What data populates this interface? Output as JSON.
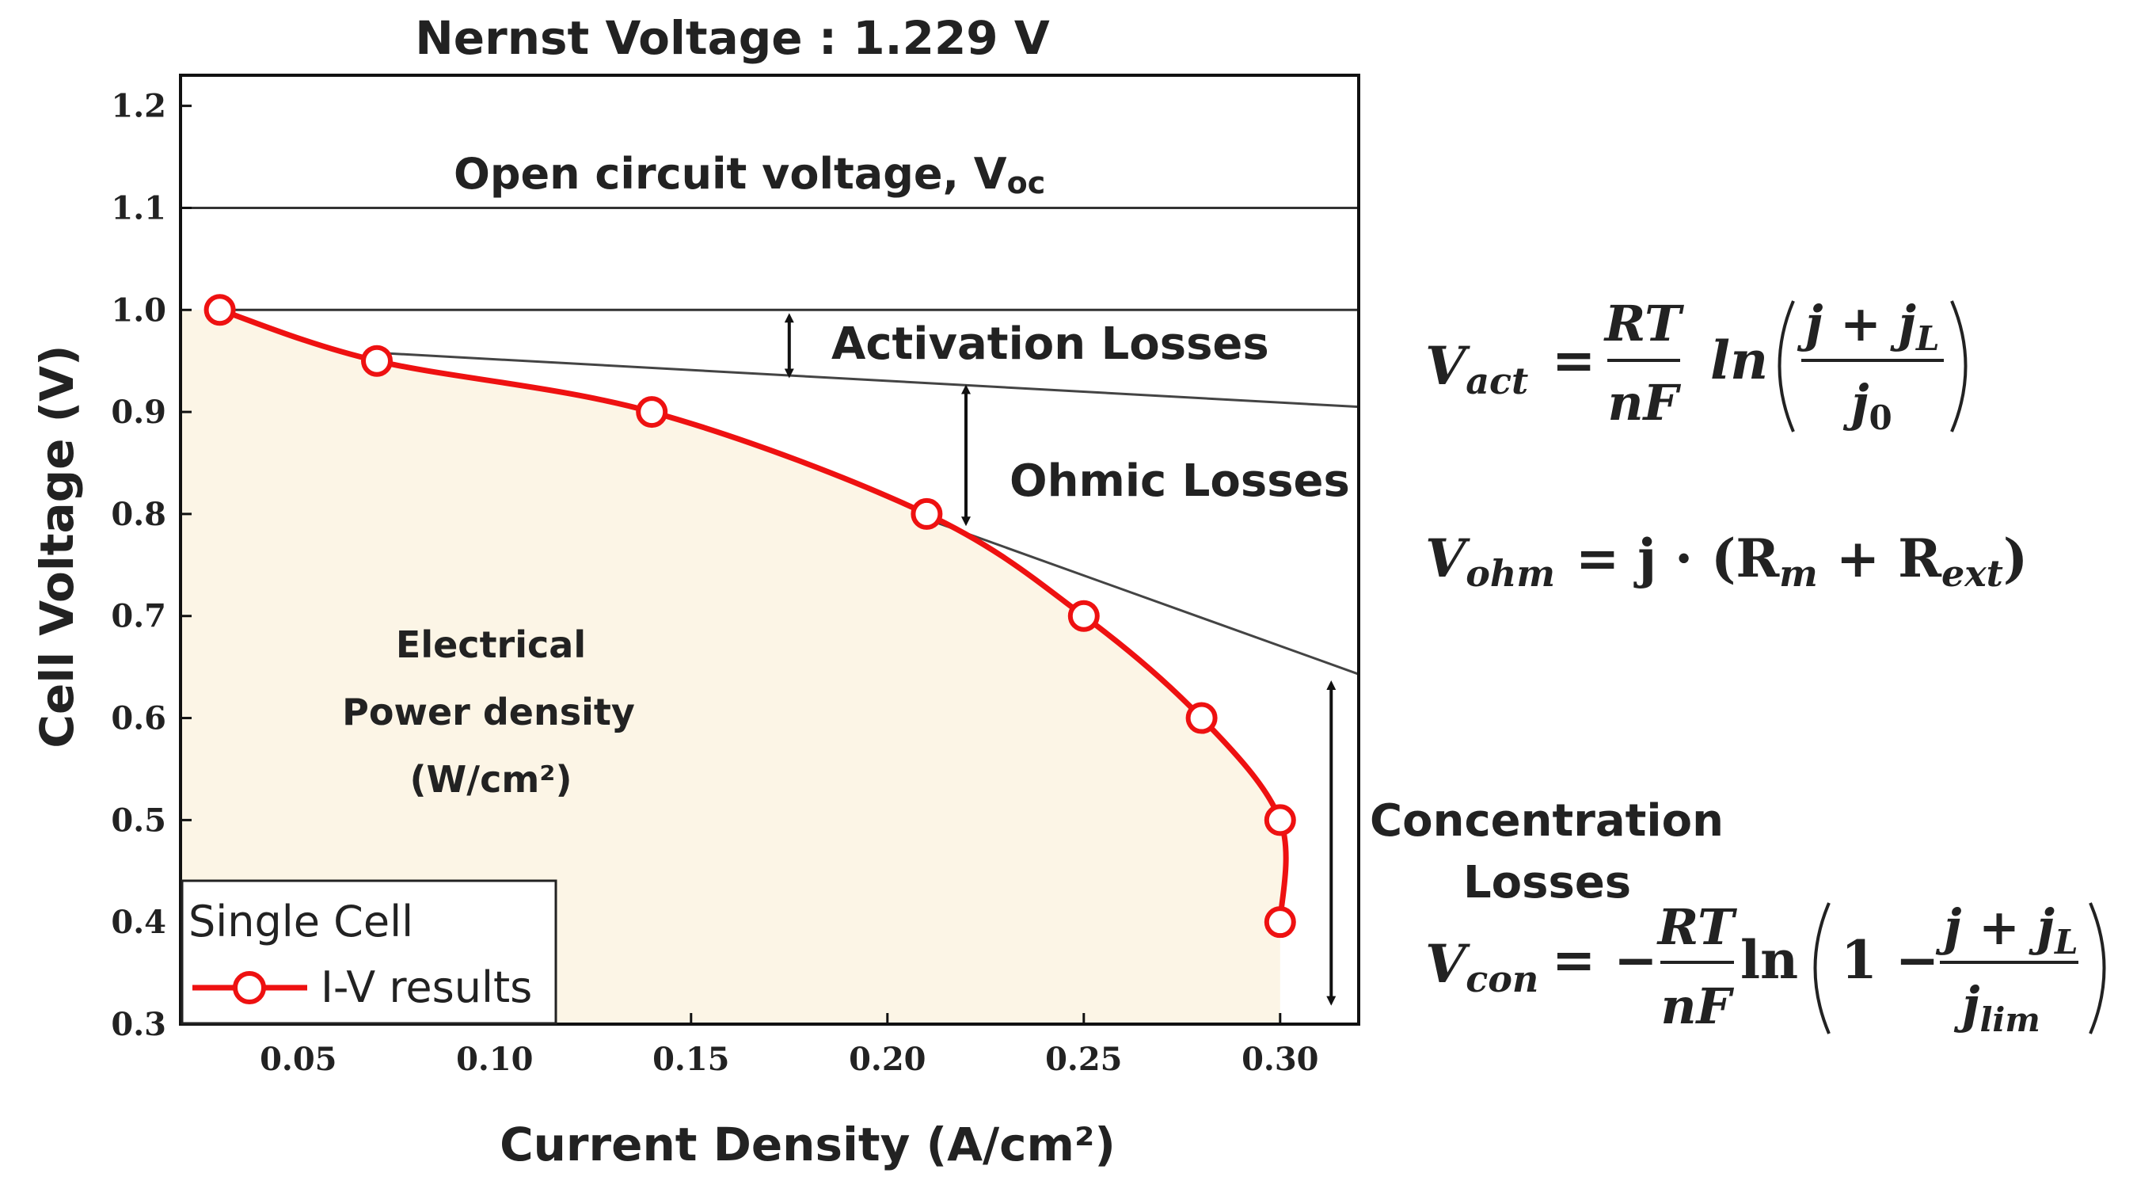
{
  "chart_data": {
    "type": "line",
    "title": "Nernst Voltage : 1.229 V",
    "xlabel": "Current Density (A/cm²)",
    "ylabel": "Cell Voltage (V)",
    "xlim": [
      0.02,
      0.32
    ],
    "ylim": [
      0.3,
      1.23
    ],
    "x_ticks": [
      "0.05",
      "0.10",
      "0.15",
      "0.20",
      "0.25",
      "0.30"
    ],
    "x_tick_values": [
      0.05,
      0.1,
      0.15,
      0.2,
      0.25,
      0.3
    ],
    "y_ticks": [
      "0.3",
      "0.4",
      "0.5",
      "0.6",
      "0.7",
      "0.8",
      "0.9",
      "1.0",
      "1.1",
      "1.2"
    ],
    "y_tick_values": [
      0.3,
      0.4,
      0.5,
      0.6,
      0.7,
      0.8,
      0.9,
      1.0,
      1.1,
      1.2
    ],
    "series": [
      {
        "name": "I-V results",
        "color": "#ee1111",
        "x": [
          0.03,
          0.07,
          0.14,
          0.21,
          0.25,
          0.28,
          0.3,
          0.3
        ],
        "y": [
          1.0,
          0.95,
          0.9,
          0.8,
          0.7,
          0.6,
          0.5,
          0.4
        ]
      }
    ],
    "fill_color": "#fcf5e6",
    "reference_lines": [
      {
        "name": "ocv",
        "y": 1.1
      },
      {
        "name": "reference",
        "y": 1.0
      }
    ],
    "tangent_lines": [
      {
        "name": "activation-tangent",
        "x1": 0.07,
        "y1": 0.958,
        "x2": 0.32,
        "y2": 0.905
      },
      {
        "name": "ohmic-tangent",
        "x1": 0.21,
        "y1": 0.795,
        "x2": 0.32,
        "y2": 0.643
      }
    ],
    "arrows": [
      {
        "name": "activation-arrow",
        "x": 0.175,
        "y1": 1.0,
        "y2": 0.93
      },
      {
        "name": "ohmic-arrow",
        "x": 0.22,
        "y1": 0.93,
        "y2": 0.785
      },
      {
        "name": "concentration-arrow",
        "x": 0.313,
        "y1": 0.64,
        "y2": 0.315
      }
    ],
    "legend": {
      "title": "Single Cell",
      "entries": [
        "I-V results"
      ],
      "position": "bottom-left"
    },
    "annotations": {
      "ocv": "Open circuit voltage, V",
      "ocv_sub": "oc",
      "activation": "Activation Losses",
      "ohmic": "Ohmic Losses",
      "concentration_line1": "Concentration",
      "concentration_line2": "Losses",
      "power_line1": "Electrical",
      "power_line2": "Power density",
      "power_line3": "(W/cm²)"
    }
  },
  "equations": {
    "v_act": {
      "lhs_v": "V",
      "lhs_sub": "act",
      "eq": "=",
      "frac_num": "RT",
      "frac_den": "nF",
      "ln": "ln",
      "inner_num_j": "j + j",
      "inner_num_sub": "L",
      "inner_den_j": "j",
      "inner_den_sub": "0"
    },
    "v_ohm": {
      "lhs_v": "V",
      "lhs_sub": "ohm",
      "rhs": "= j · (R",
      "rm_sub": "m",
      "plus": " + R",
      "rext_sub": "ext",
      "close": ")"
    },
    "v_con": {
      "lhs_v": "V",
      "lhs_sub": "con",
      "eq": "= −",
      "frac_num": "RT",
      "frac_den": "nF",
      "ln": "ln",
      "one_minus": "1 −",
      "inner_num_j": "j + j",
      "inner_num_sub": "L",
      "inner_den_j": "j",
      "inner_den_sub": "lim"
    }
  }
}
